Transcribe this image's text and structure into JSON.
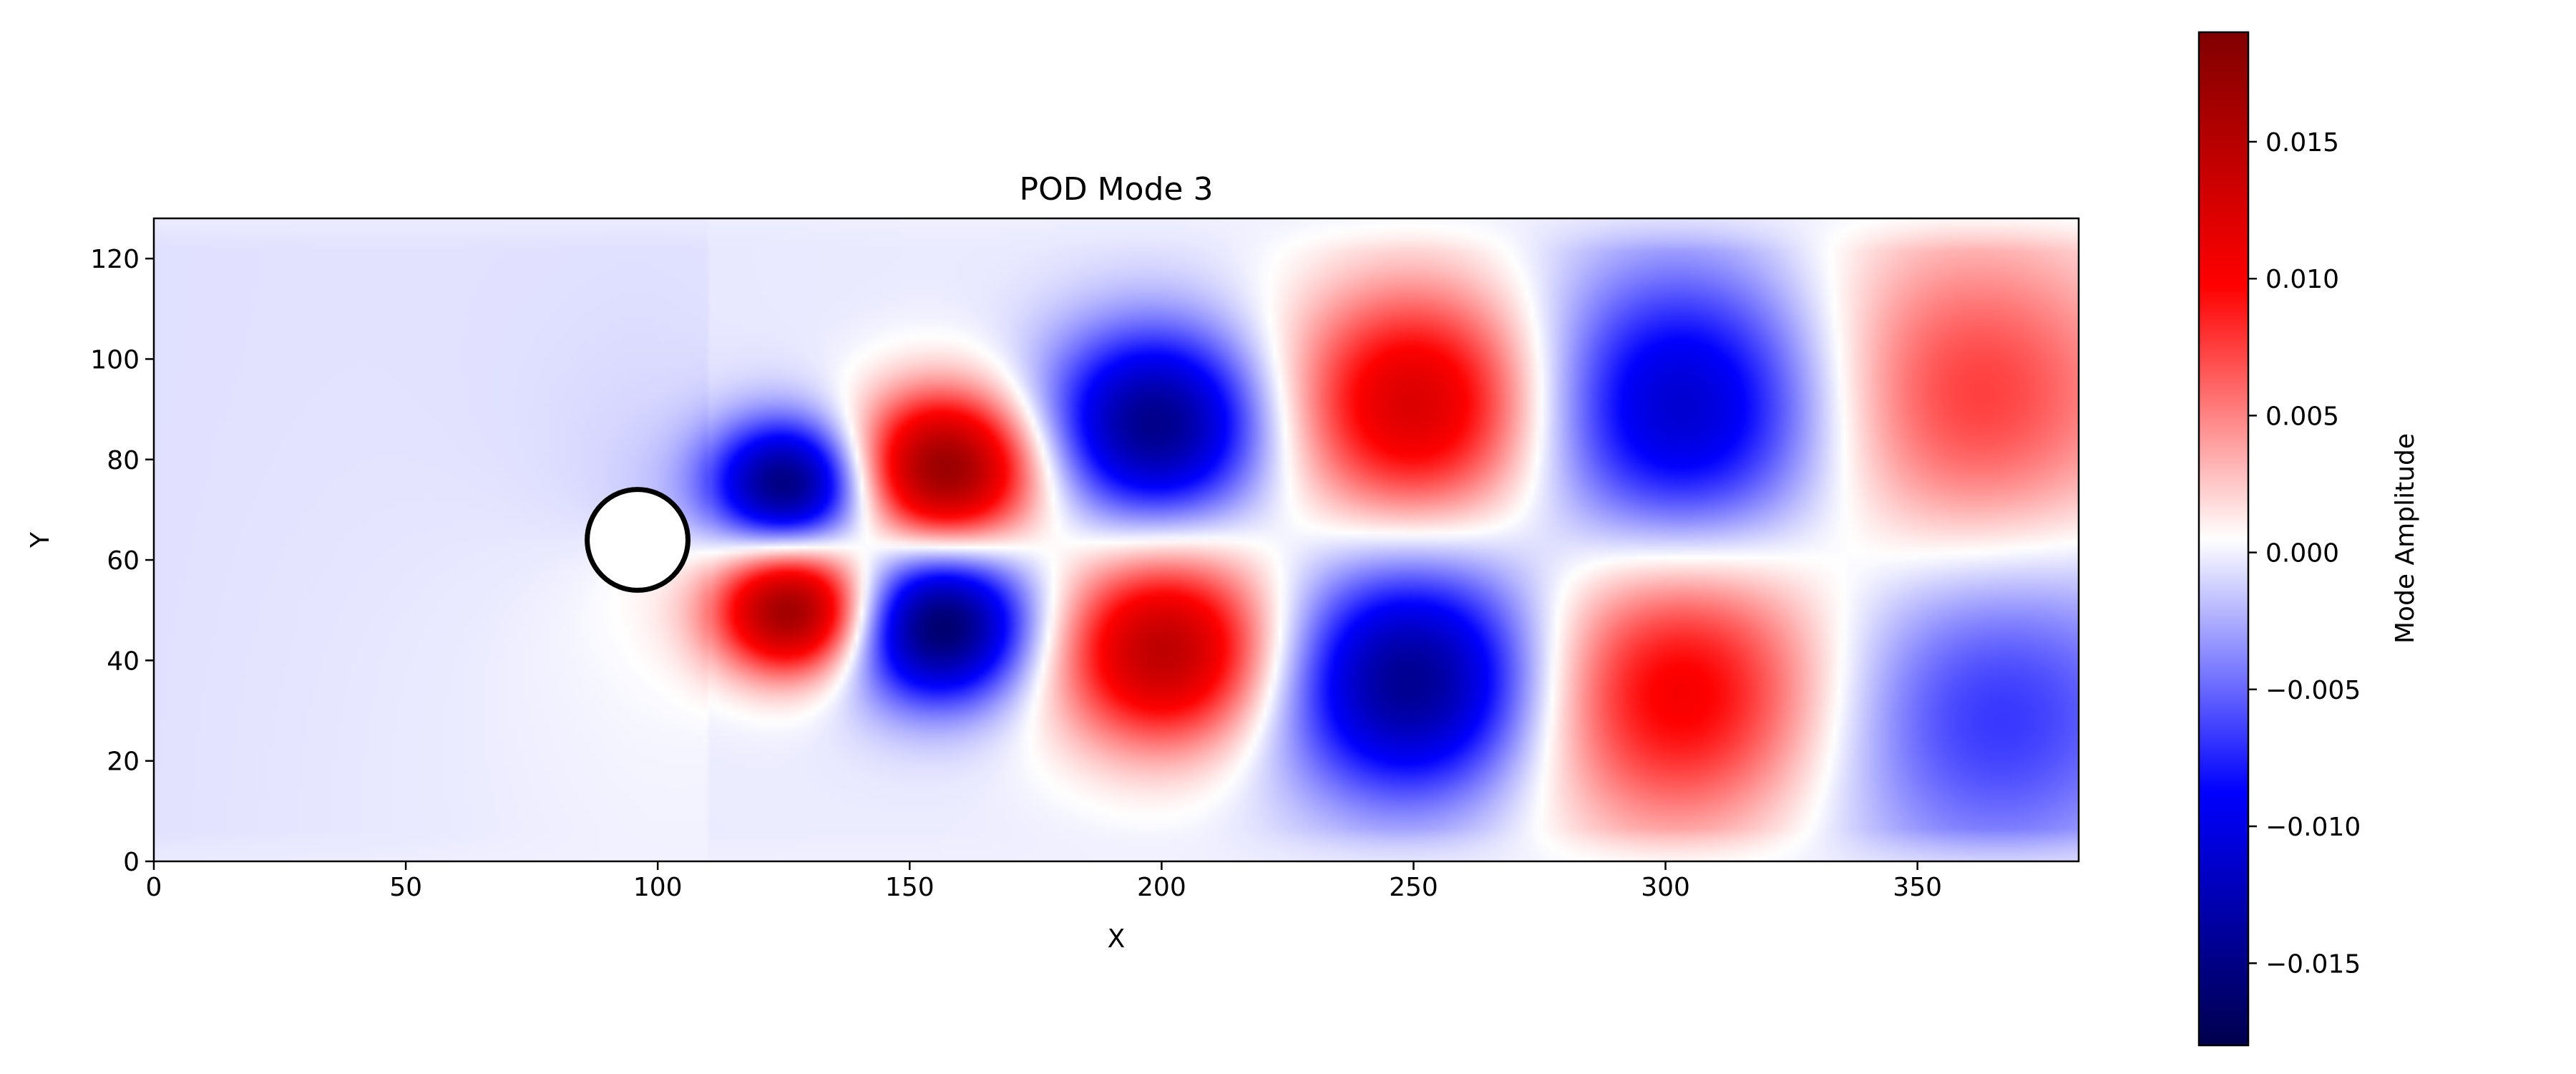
{
  "chart_data": {
    "type": "heatmap",
    "title": "POD Mode 3",
    "xlabel": "X",
    "ylabel": "Y",
    "xlim": [
      0,
      382
    ],
    "ylim": [
      0,
      128
    ],
    "xticks": [
      0,
      50,
      100,
      150,
      200,
      250,
      300,
      350
    ],
    "yticks": [
      0,
      20,
      40,
      60,
      80,
      100,
      120
    ],
    "colormap": "seismic",
    "colorbar": {
      "label": "Mode Amplitude",
      "range": [
        -0.018,
        0.019
      ],
      "ticks": [
        -0.015,
        -0.01,
        -0.005,
        0.0,
        0.005,
        0.01,
        0.015
      ],
      "tick_labels": [
        "−0.015",
        "−0.010",
        "−0.005",
        "0.000",
        "0.005",
        "0.010",
        "0.015"
      ]
    },
    "obstacle": {
      "shape": "circle",
      "center": [
        96,
        64
      ],
      "radius": 10
    },
    "field": {
      "grid": false,
      "positive_lobes_upper": [
        {
          "x": 157,
          "y": 78,
          "amplitude": 0.018
        },
        {
          "x": 251,
          "y": 91,
          "amplitude": 0.013
        },
        {
          "x": 360,
          "y": 92,
          "amplitude": 0.008
        }
      ],
      "negative_lobes_upper": [
        {
          "x": 126,
          "y": 75,
          "amplitude": -0.016
        },
        {
          "x": 199,
          "y": 87,
          "amplitude": -0.015
        },
        {
          "x": 304,
          "y": 90,
          "amplitude": -0.012
        }
      ],
      "positive_lobes_lower": [
        {
          "x": 127,
          "y": 50,
          "amplitude": 0.018
        },
        {
          "x": 201,
          "y": 42,
          "amplitude": 0.015
        },
        {
          "x": 303,
          "y": 34,
          "amplitude": 0.011
        }
      ],
      "negative_lobes_lower": [
        {
          "x": 156,
          "y": 47,
          "amplitude": -0.017
        },
        {
          "x": 250,
          "y": 36,
          "amplitude": -0.015
        },
        {
          "x": 365,
          "y": 30,
          "amplitude": -0.007
        }
      ]
    }
  }
}
